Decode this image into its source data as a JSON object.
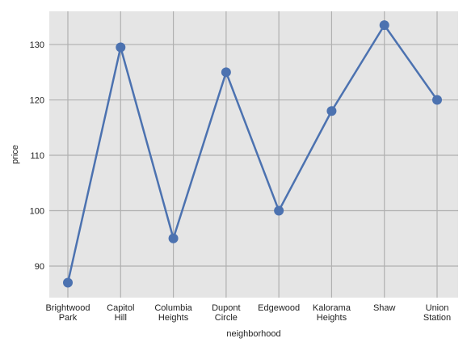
{
  "chart_data": {
    "type": "line",
    "categories": [
      [
        "Brightwood",
        "Park"
      ],
      [
        "Capitol",
        "Hill"
      ],
      [
        "Columbia",
        "Heights"
      ],
      [
        "Dupont",
        "Circle"
      ],
      [
        "Edgewood"
      ],
      [
        "Kalorama",
        "Heights"
      ],
      [
        "Shaw"
      ],
      [
        "Union",
        "Station"
      ]
    ],
    "values": [
      87,
      129.5,
      95,
      125,
      100,
      118,
      133.5,
      120
    ],
    "xlabel": "neighborhood",
    "ylabel": "price",
    "ylim": [
      84.3,
      136
    ],
    "yticks": [
      90,
      100,
      110,
      120,
      130
    ],
    "grid": true,
    "colors": {
      "background": "#e5e5e5",
      "grid": "#b0b0b0",
      "line": "#4c72b0",
      "marker": "#4c72b0"
    }
  }
}
